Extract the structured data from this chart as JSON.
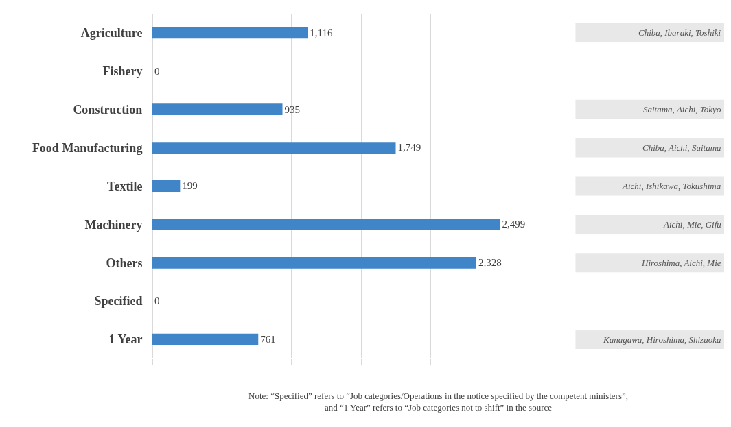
{
  "chart_data": {
    "type": "bar",
    "orientation": "horizontal",
    "categories": [
      "Agriculture",
      "Fishery",
      "Construction",
      "Food Manufacturing",
      "Textile",
      "Machinery",
      "Others",
      "Specified",
      "1 Year"
    ],
    "y2_categories": [
      "Chiba, Ibaraki, Toshiki",
      null,
      "Saitama, Aichi, Tokyo",
      "Chiba, Aichi, Saitama",
      "Aichi, Ishikawa, Tokushima",
      "Aichi, Mie, Gifu",
      "Hiroshima, Aichi, Mie",
      null,
      "Kanagawa, Hiroshima, Shizuoka"
    ],
    "values": [
      1116,
      0,
      935,
      1749,
      199,
      2499,
      2328,
      0,
      761
    ],
    "value_labels": [
      "1,116",
      "0",
      "935",
      "1,749",
      "199",
      "2,499",
      "2,328",
      "0",
      "761"
    ],
    "color": "#3f85c8",
    "xlim": [
      0,
      3000
    ],
    "xticks": [
      {
        "value": 0,
        "label": null
      },
      {
        "value": 500,
        "label": null
      },
      {
        "value": 1000,
        "label": null
      },
      {
        "value": 1500,
        "label": null
      },
      {
        "value": 2000,
        "label": null
      },
      {
        "value": 2500,
        "label": null
      },
      {
        "value": 3000,
        "label": null
      }
    ],
    "tick_labels": "y",
    "grid": "x",
    "annotations": [
      "Note: “Specified” refers to “Job categories/Operations in the notice specified by the competent ministers”,\nand “1 Year” refers to “Job categories not to shift” in the source"
    ]
  }
}
